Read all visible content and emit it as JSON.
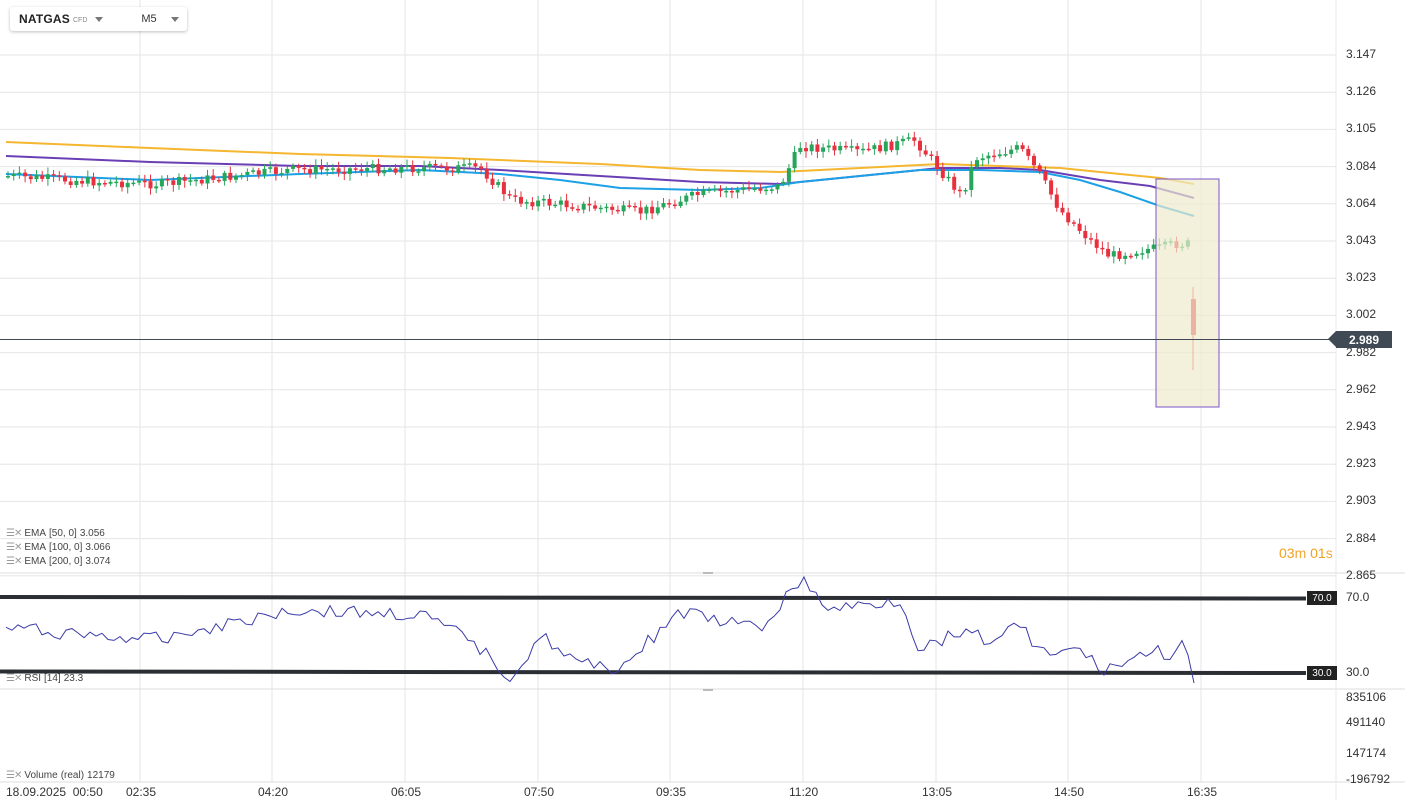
{
  "symbol": {
    "name": "NATGAS",
    "type": "CFD",
    "timeframe": "M5"
  },
  "colors": {
    "bull": "#26a65b",
    "bear": "#e8313f",
    "ema50": "#1da1e6",
    "ema100": "#6a3fb5",
    "ema200": "#f5b630",
    "rsi": "#3a3aa8",
    "grid": "#e6e6e6"
  },
  "price_axis": {
    "labels": [
      "3.147",
      "3.126",
      "3.105",
      "3.084",
      "3.064",
      "3.043",
      "3.023",
      "3.002",
      "2.982",
      "2.962",
      "2.943",
      "2.923",
      "2.903",
      "2.884",
      "2.865"
    ]
  },
  "current_price": {
    "value": "2.989"
  },
  "countdown": {
    "minutes": "03",
    "m": "m",
    "seconds": "01",
    "s": "s"
  },
  "indicators": {
    "ema50": {
      "label": "EMA",
      "params": "[50, 0]",
      "value": "3.056"
    },
    "ema100": {
      "label": "EMA",
      "params": "[100, 0]",
      "value": "3.066"
    },
    "ema200": {
      "label": "EMA",
      "params": "[200, 0]",
      "value": "3.074"
    },
    "rsi": {
      "label": "RSI",
      "params": "[14]",
      "value": "23.3",
      "levels": [
        "70.0",
        "30.0"
      ],
      "axis": [
        "70.0",
        "30.0"
      ]
    },
    "volume": {
      "label": "Volume",
      "params": "(real)",
      "value": "12179",
      "axis": [
        "835106",
        "491140",
        "147174",
        "-196792"
      ]
    }
  },
  "time_axis": {
    "labels": [
      "18.09.2025  00:50",
      "02:35",
      "04:20",
      "06:05",
      "07:50",
      "09:35",
      "11:20",
      "13:05",
      "14:50",
      "16:35"
    ]
  }
}
